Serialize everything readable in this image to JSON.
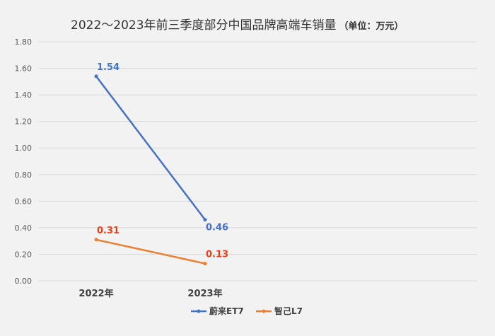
{
  "chart_data": {
    "type": "line",
    "title": "2022～2023年前三季度部分中国品牌高端车销量",
    "title_unit": "（单位：万元）",
    "categories": [
      "2022年",
      "2023年"
    ],
    "yticks": [
      "1.80",
      "1.60",
      "1.40",
      "1.20",
      "1.00",
      "0.80",
      "0.60",
      "0.40",
      "0.20",
      "0.00"
    ],
    "ylim": [
      0,
      1.8
    ],
    "grid": true,
    "legend_position": "bottom-right",
    "series": [
      {
        "name": "蔚来ET7",
        "values": [
          1.54,
          0.46
        ],
        "labels": [
          "1.54",
          "0.46"
        ],
        "color": "#4472c4",
        "label_color": "#4472c4"
      },
      {
        "name": "智己L7",
        "values": [
          0.31,
          0.13
        ],
        "labels": [
          "0.31",
          "0.13"
        ],
        "color": "#ed7d31",
        "label_color": "#e8401c"
      }
    ]
  }
}
